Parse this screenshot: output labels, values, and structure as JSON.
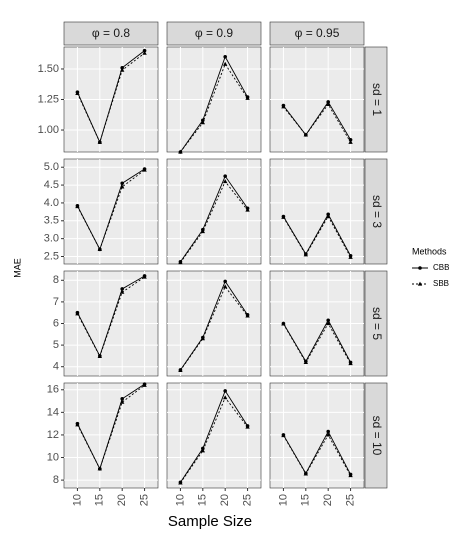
{
  "chart_data": {
    "type": "line",
    "x_label": "Sample Size",
    "y_label": "MAE",
    "legend_title": "Methods",
    "legend": "right",
    "grid": true,
    "x": [
      10,
      15,
      20,
      25
    ],
    "xlim": [
      7,
      28
    ],
    "xticks": [
      10,
      15,
      20,
      25
    ],
    "columns": [
      "φ = 0.8",
      "φ = 0.9",
      "φ = 0.95"
    ],
    "series": [
      {
        "name": "CBB",
        "color": "#000000",
        "marker": "circle",
        "dash": "solid"
      },
      {
        "name": "SBB",
        "color": "#000000",
        "marker": "triangle",
        "dash": "dotted"
      }
    ],
    "rows": [
      {
        "label": "sd = 1",
        "ylim": [
          0.82,
          1.68
        ],
        "yticks": [
          {
            "value": 1.0,
            "label": "1.00"
          },
          1.25,
          {
            "value": 1.5,
            "label": "1.50"
          }
        ],
        "panels": [
          [
            [
              1.31,
              0.9,
              1.51,
              1.65
            ],
            [
              1.3,
              0.9,
              1.49,
              1.63
            ]
          ],
          [
            [
              0.82,
              1.08,
              1.6,
              1.27
            ],
            [
              0.82,
              1.06,
              1.54,
              1.26
            ]
          ],
          [
            [
              1.2,
              0.96,
              1.23,
              0.92
            ],
            [
              1.19,
              0.96,
              1.21,
              0.9
            ]
          ]
        ]
      },
      {
        "label": "sd = 3",
        "ylim": [
          2.29,
          5.23
        ],
        "yticks": [
          2.5,
          {
            "value": 3,
            "label": "3.0"
          },
          3.5,
          {
            "value": 4,
            "label": "4.0"
          },
          4.5,
          {
            "value": 5,
            "label": "5.0"
          }
        ],
        "panels": [
          [
            [
              3.92,
              2.7,
              4.55,
              4.95
            ],
            [
              3.9,
              2.7,
              4.45,
              4.92
            ]
          ],
          [
            [
              2.35,
              3.25,
              4.75,
              3.85
            ],
            [
              2.33,
              3.2,
              4.6,
              3.8
            ]
          ],
          [
            [
              3.62,
              2.57,
              3.68,
              2.52
            ],
            [
              3.6,
              2.55,
              3.62,
              2.48
            ]
          ]
        ]
      },
      {
        "label": "sd = 5",
        "ylim": [
          3.57,
          8.43
        ],
        "yticks": [
          4,
          5,
          6,
          7,
          8
        ],
        "panels": [
          [
            [
              6.5,
              4.5,
              7.6,
              8.2
            ],
            [
              6.45,
              4.48,
              7.45,
              8.15
            ]
          ],
          [
            [
              3.85,
              5.35,
              7.95,
              6.4
            ],
            [
              3.83,
              5.3,
              7.7,
              6.35
            ]
          ],
          [
            [
              6.0,
              4.25,
              6.15,
              4.2
            ],
            [
              5.98,
              4.2,
              6.0,
              4.15
            ]
          ]
        ]
      },
      {
        "label": "sd = 10",
        "ylim": [
          7.3,
          16.6
        ],
        "yticks": [
          8,
          10,
          12,
          14,
          16
        ],
        "panels": [
          [
            [
              13.0,
              9.0,
              15.2,
              16.5
            ],
            [
              12.9,
              9.0,
              14.9,
              16.4
            ]
          ],
          [
            [
              7.8,
              10.8,
              15.9,
              12.8
            ],
            [
              7.75,
              10.6,
              15.3,
              12.7
            ]
          ],
          [
            [
              12.0,
              8.6,
              12.3,
              8.5
            ],
            [
              11.95,
              8.55,
              12.0,
              8.4
            ]
          ]
        ]
      }
    ]
  }
}
